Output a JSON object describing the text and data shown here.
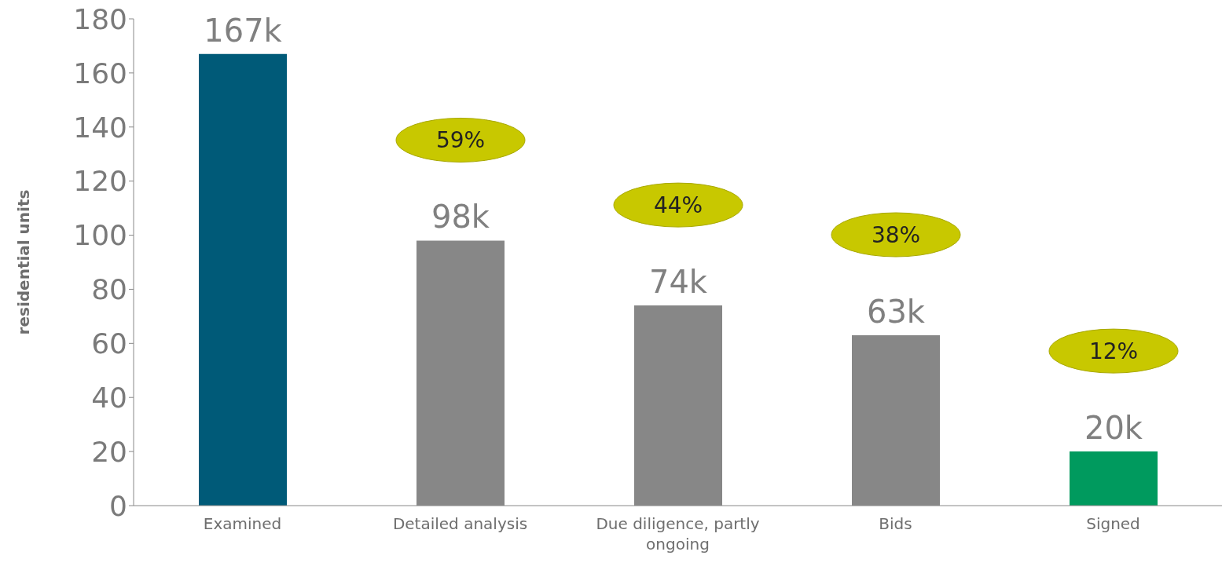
{
  "chart_data": {
    "type": "bar",
    "ylabel": "residential units",
    "categories": [
      "Examined",
      "Detailed analysis",
      "Due diligence, partly ongoing",
      "Bids",
      "Signed"
    ],
    "values": [
      167,
      98,
      74,
      63,
      20
    ],
    "colors": [
      "#005a78",
      "#878787",
      "#878787",
      "#878787",
      "#009a5e"
    ],
    "value_labels": [
      "167k",
      "98k",
      "74k",
      "63k",
      "20k"
    ],
    "ylim": [
      0,
      180
    ],
    "yticks": [
      0,
      20,
      40,
      60,
      80,
      100,
      120,
      140,
      160,
      180
    ],
    "grid": false,
    "legend": false,
    "annotations": [
      "59%",
      "44%",
      "38%",
      "12%"
    ]
  }
}
